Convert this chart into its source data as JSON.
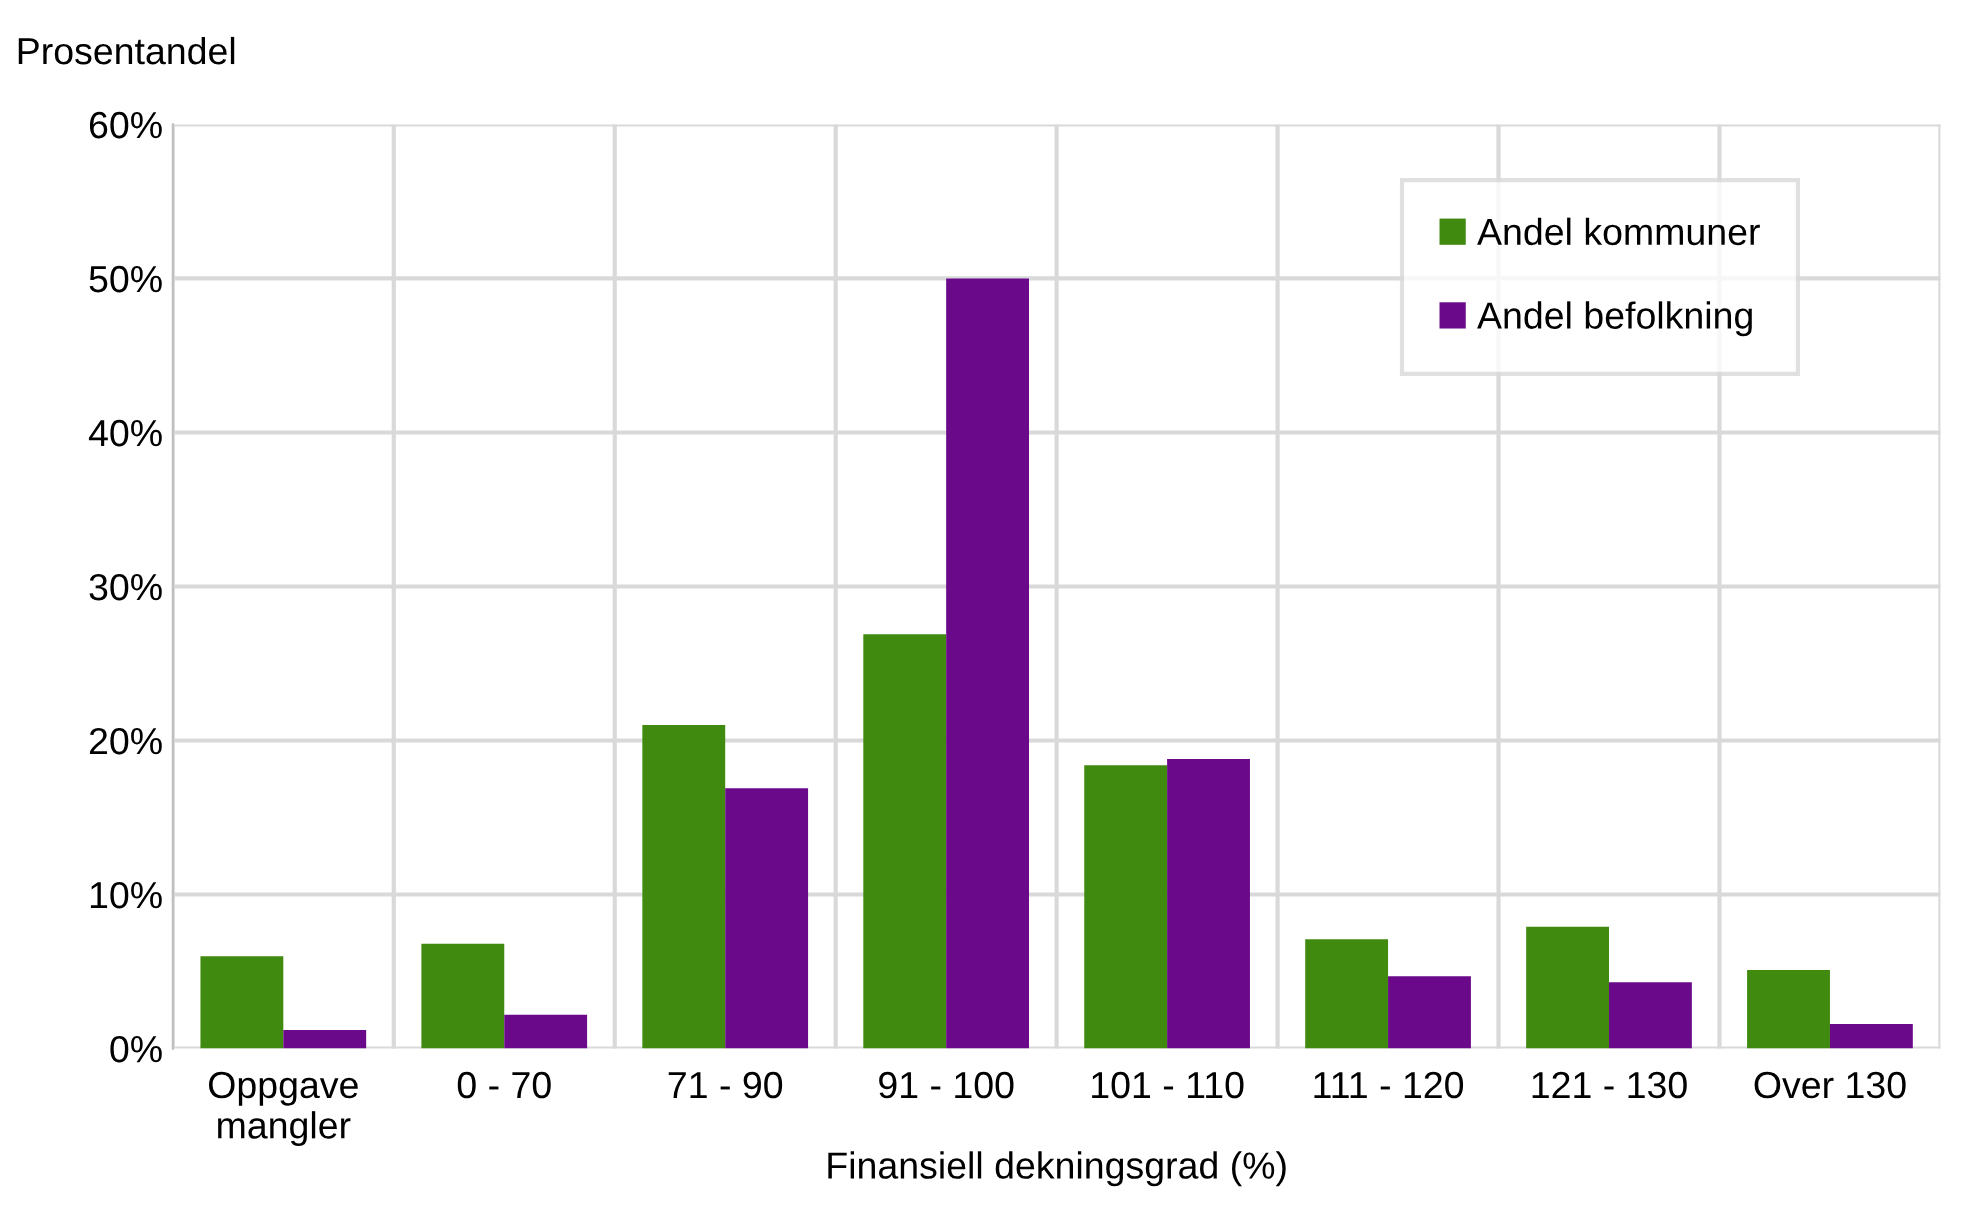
{
  "chart_data": {
    "type": "bar",
    "ylabel": "Prosentandel",
    "xlabel": "Finansiell dekningsgrad (%)",
    "categories": [
      "Oppgave\nmangler",
      "0 - 70",
      "71 - 90",
      "91 - 100",
      "101 - 110",
      "111 - 120",
      "121 - 130",
      "Over 130"
    ],
    "series": [
      {
        "name": "Andel kommuner",
        "color": "#3f8a0f",
        "values": [
          6.0,
          6.8,
          21.0,
          26.9,
          18.4,
          7.1,
          7.9,
          5.1
        ]
      },
      {
        "name": "Andel befolkning",
        "color": "#6a0a8a",
        "values": [
          1.2,
          2.2,
          16.9,
          50.0,
          18.8,
          4.7,
          4.3,
          1.6
        ]
      }
    ],
    "ylim": [
      0,
      60
    ],
    "yticks": [
      {
        "value": 0,
        "label": "0%"
      },
      {
        "value": 10,
        "label": "10%"
      },
      {
        "value": 20,
        "label": "20%"
      },
      {
        "value": 30,
        "label": "30%"
      },
      {
        "value": 40,
        "label": "40%"
      },
      {
        "value": 50,
        "label": "50%"
      },
      {
        "value": 60,
        "label": "60%"
      }
    ],
    "grid": true,
    "legend": "top right"
  }
}
